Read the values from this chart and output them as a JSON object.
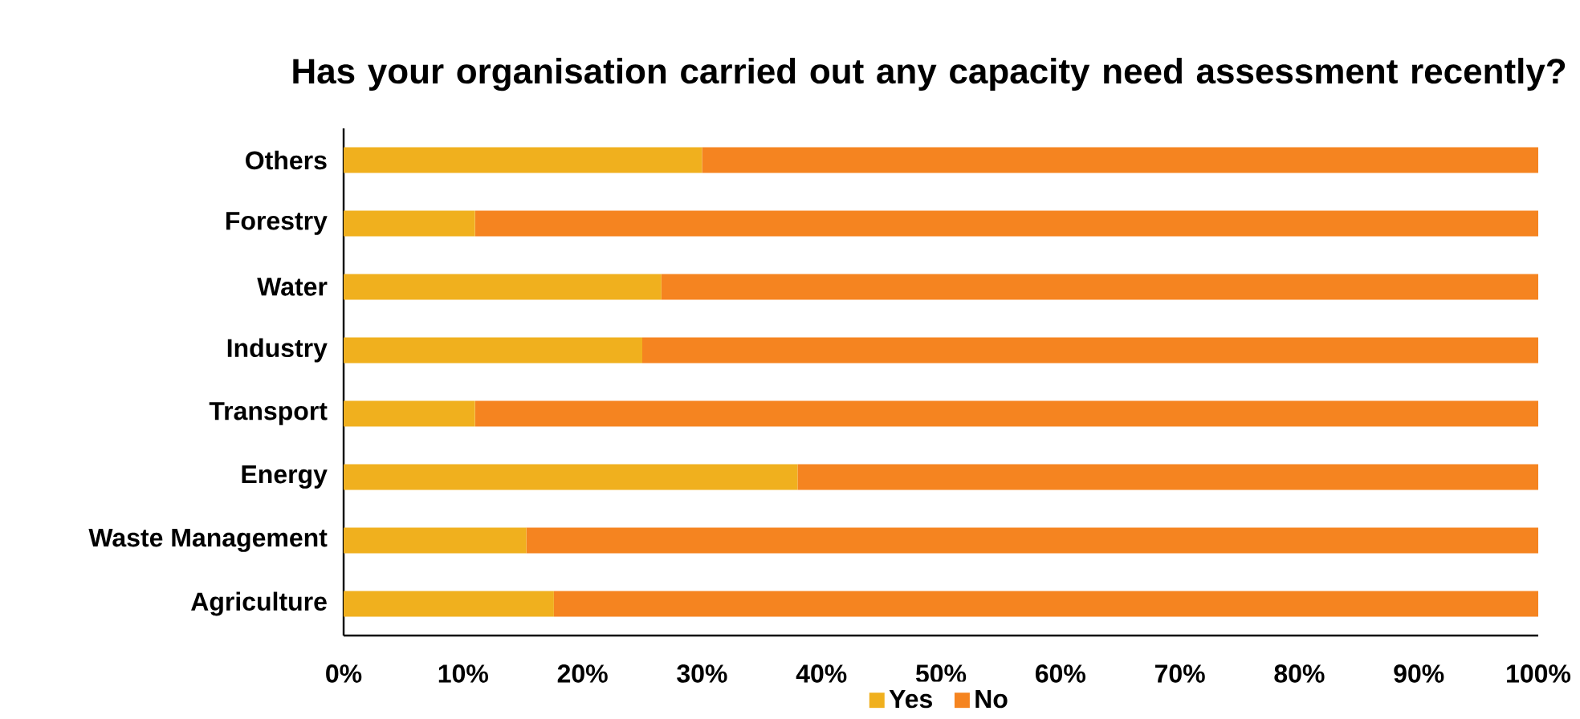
{
  "chart_data": {
    "type": "bar",
    "orientation": "horizontal",
    "stacked": true,
    "title": "Has your organisation carried out any capacity need assessment recently?",
    "categories": [
      "Others",
      "Forestry",
      "Water",
      "Industry",
      "Transport",
      "Energy",
      "Waste Management",
      "Agriculture"
    ],
    "series": [
      {
        "name": "Yes",
        "color": "#f0b01e",
        "values": [
          30,
          11,
          26.6,
          25,
          11,
          38,
          15.3,
          17.6
        ]
      },
      {
        "name": "No",
        "color": "#f58420",
        "values": [
          70,
          89,
          73.4,
          75,
          89,
          62,
          84.7,
          82.4
        ]
      }
    ],
    "xlim": [
      0,
      100
    ],
    "xticks": [
      {
        "value": 0,
        "label": "0%"
      },
      {
        "value": 10,
        "label": "10%"
      },
      {
        "value": 20,
        "label": "20%"
      },
      {
        "value": 30,
        "label": "30%"
      },
      {
        "value": 40,
        "label": "40%"
      },
      {
        "value": 50,
        "label": "50%"
      },
      {
        "value": 60,
        "label": "60%"
      },
      {
        "value": 70,
        "label": "70%"
      },
      {
        "value": 80,
        "label": "80%"
      },
      {
        "value": 90,
        "label": "90%"
      },
      {
        "value": 100,
        "label": "100%"
      }
    ],
    "grid": false,
    "legend": "bottom"
  }
}
